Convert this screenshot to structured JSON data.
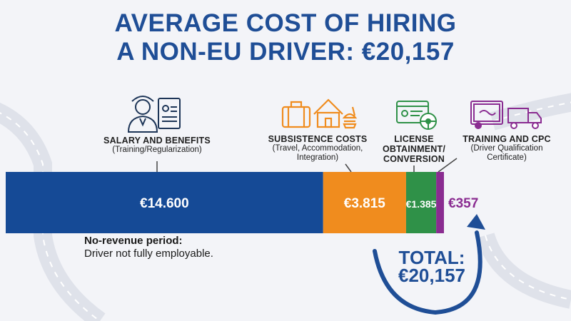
{
  "title": {
    "line1": "AVERAGE COST OF HIRING",
    "line2": "A NON-EU DRIVER: €20,157"
  },
  "colors": {
    "title": "#1f4e96",
    "salary": "#154a96",
    "subsistence": "#f08c1e",
    "license": "#2f9148",
    "training": "#8a2c91"
  },
  "icons": [
    "driver-icon",
    "document-icon",
    "suitcase-icon",
    "house-icon",
    "food-icon",
    "license-card-icon",
    "steering-wheel-icon",
    "certificate-icon",
    "truck-icon",
    "curved-arrow-icon"
  ],
  "chart_data": {
    "type": "bar",
    "orientation": "horizontal-stacked",
    "categories": [
      {
        "name": "SALARY AND BENEFITS",
        "sub": "(Training/Regularization)",
        "value": 14600,
        "label": "€14.600"
      },
      {
        "name": "SUBSISTENCE COSTS",
        "sub": "(Travel, Accommodation, Integration)",
        "value": 3815,
        "label": "€3.815"
      },
      {
        "name": "LICENSE OBTAINMENT/ CONVERSION",
        "sub": "",
        "value": 1385,
        "label": "€1.385"
      },
      {
        "name": "TRAINING AND CPC",
        "sub": "(Driver Qualification Certificate)",
        "value": 357,
        "label": "€357"
      }
    ],
    "total": 20157
  },
  "labels": {
    "salary_h": "SALARY AND BENEFITS",
    "salary_s": "(Training/Regularization)",
    "sub_h": "SUBSISTENCE COSTS",
    "sub_s1": "(Travel, Accommodation,",
    "sub_s2": "Integration)",
    "lic_h1": "LICENSE",
    "lic_h2": "OBTAINMENT/",
    "lic_h3": "CONVERSION",
    "train_h": "TRAINING AND CPC",
    "train_s1": "(Driver Qualification",
    "train_s2": "Certificate)"
  },
  "note": {
    "bold": "No-revenue period:",
    "text": "Driver not fully employable."
  },
  "total": {
    "label": "TOTAL:",
    "value": "€20,157"
  }
}
